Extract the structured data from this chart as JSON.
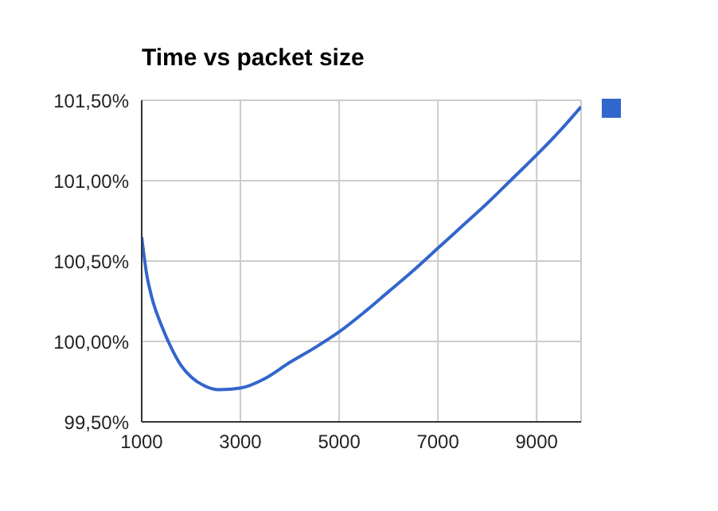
{
  "chart_data": {
    "type": "line",
    "title": "Time vs packet size",
    "x": [
      1000,
      1100,
      1200,
      1400,
      1600,
      1800,
      2000,
      2300,
      2600,
      3000,
      3500,
      4000,
      4500,
      5000,
      5500,
      6000,
      6500,
      7000,
      7500,
      8000,
      8500,
      9000,
      9500,
      9900
    ],
    "series": [
      {
        "color": "#3366cc",
        "values": [
          100.65,
          100.42,
          100.28,
          100.1,
          99.96,
          99.85,
          99.78,
          99.72,
          99.7,
          99.71,
          99.77,
          99.87,
          99.96,
          100.06,
          100.18,
          100.31,
          100.44,
          100.58,
          100.72,
          100.86,
          101.01,
          101.16,
          101.32,
          101.46
        ]
      }
    ],
    "xlim": [
      1000,
      9900
    ],
    "xticks": [
      1000,
      3000,
      5000,
      7000,
      9000
    ],
    "ylim": [
      99.5,
      101.5
    ],
    "yticks": [
      {
        "value": 99.5,
        "label": "99,50%"
      },
      {
        "value": 100,
        "label": "100,00%"
      },
      {
        "value": 100.5,
        "label": "100,50%"
      },
      {
        "value": 101,
        "label": "101,00%"
      },
      {
        "value": 101.5,
        "label": "101,50%"
      }
    ],
    "grid": true,
    "marker": "none",
    "line_style": "solid"
  }
}
